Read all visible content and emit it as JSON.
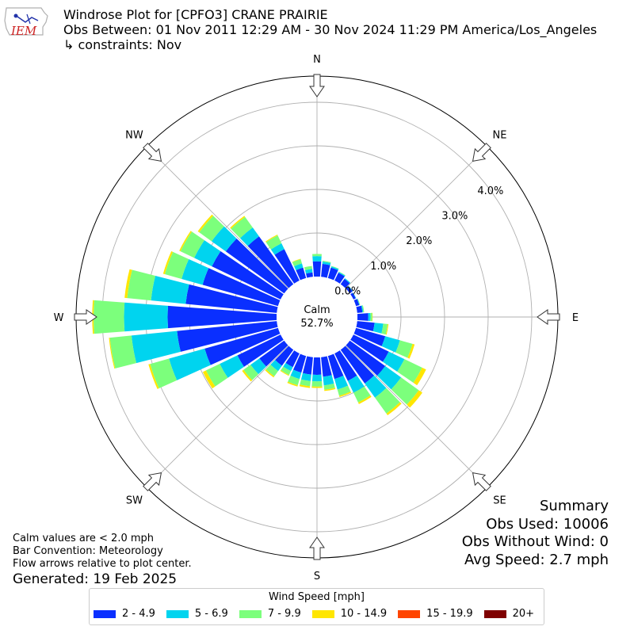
{
  "header": {
    "line1": "Windrose Plot for [CPFO3] CRANE PRAIRIE",
    "line2": "Obs Between: 01 Nov 2011 12:29 AM - 30 Nov 2024 11:29 PM America/Los_Angeles",
    "line3": "↳ constraints: Nov"
  },
  "logo": {
    "text": "IEM",
    "color": "#cc2222"
  },
  "summary": {
    "title": "Summary",
    "obs_used": "Obs Used: 10006",
    "obs_without_wind": "Obs Without Wind: 0",
    "avg_speed": "Avg Speed: 2.7 mph"
  },
  "notes": {
    "calm_note": "Calm values are < 2.0 mph",
    "bar_convention": "Bar Convention: Meteorology",
    "flow_arrows": "Flow arrows relative to plot center.",
    "generated": "Generated: 19 Feb 2025"
  },
  "chart_data": {
    "type": "windrose",
    "calm_label": "Calm",
    "calm_value": "52.7%",
    "calm_percent": 52.7,
    "radial_max": 4.6,
    "radial_ticks": [
      0,
      1,
      2,
      3,
      4
    ],
    "radial_tick_labels": [
      "0.0%",
      "1.0%",
      "2.0%",
      "3.0%",
      "4.0%"
    ],
    "direction_labels": [
      "N",
      "NE",
      "E",
      "SE",
      "S",
      "SW",
      "W",
      "NW"
    ],
    "legend_title": "Wind Speed [mph]",
    "bins": [
      {
        "label": "2 - 4.9",
        "color": "#0a2fff"
      },
      {
        "label": "5 - 6.9",
        "color": "#00d4ef"
      },
      {
        "label": "7 - 9.9",
        "color": "#7cff7c"
      },
      {
        "label": "10 - 14.9",
        "color": "#ffe600"
      },
      {
        "label": "15 - 19.9",
        "color": "#ff4500"
      },
      {
        "label": "20+",
        "color": "#7f0000"
      }
    ],
    "directions": [
      0,
      10,
      20,
      30,
      40,
      50,
      60,
      70,
      80,
      90,
      100,
      110,
      120,
      130,
      140,
      150,
      160,
      170,
      180,
      190,
      200,
      210,
      220,
      230,
      240,
      250,
      260,
      270,
      280,
      290,
      300,
      310,
      320,
      330,
      340,
      350
    ],
    "values": [
      [
        0.35,
        0.12,
        0.05,
        0.0,
        0,
        0
      ],
      [
        0.3,
        0.05,
        0.02,
        0.0,
        0,
        0
      ],
      [
        0.25,
        0.03,
        0.01,
        0.0,
        0,
        0
      ],
      [
        0.2,
        0.02,
        0.01,
        0.0,
        0,
        0
      ],
      [
        0.15,
        0.02,
        0.0,
        0.0,
        0,
        0
      ],
      [
        0.08,
        0.01,
        0.0,
        0.0,
        0,
        0
      ],
      [
        0.06,
        0.01,
        0.0,
        0.0,
        0,
        0
      ],
      [
        0.08,
        0.01,
        0.01,
        0.0,
        0,
        0
      ],
      [
        0.12,
        0.02,
        0.02,
        0.0,
        0,
        0
      ],
      [
        0.25,
        0.05,
        0.04,
        0.01,
        0,
        0
      ],
      [
        0.4,
        0.2,
        0.1,
        0.02,
        0,
        0
      ],
      [
        0.7,
        0.35,
        0.3,
        0.05,
        0,
        0
      ],
      [
        0.9,
        0.4,
        0.45,
        0.1,
        0,
        0
      ],
      [
        1.0,
        0.45,
        0.5,
        0.1,
        0,
        0
      ],
      [
        0.95,
        0.4,
        0.45,
        0.05,
        0,
        0
      ],
      [
        0.7,
        0.3,
        0.25,
        0.04,
        0,
        0
      ],
      [
        0.55,
        0.25,
        0.15,
        0.03,
        0,
        0
      ],
      [
        0.45,
        0.2,
        0.1,
        0.03,
        0,
        0
      ],
      [
        0.4,
        0.15,
        0.12,
        0.03,
        0,
        0
      ],
      [
        0.4,
        0.15,
        0.12,
        0.04,
        0,
        0
      ],
      [
        0.4,
        0.15,
        0.15,
        0.03,
        0,
        0
      ],
      [
        0.35,
        0.1,
        0.1,
        0.02,
        0,
        0
      ],
      [
        0.45,
        0.15,
        0.15,
        0.03,
        0,
        0
      ],
      [
        0.7,
        0.25,
        0.2,
        0.04,
        0,
        0
      ],
      [
        1.1,
        0.45,
        0.35,
        0.08,
        0,
        0
      ],
      [
        1.75,
        0.85,
        0.45,
        0.04,
        0,
        0
      ],
      [
        2.3,
        1.05,
        0.5,
        0.02,
        0,
        0
      ],
      [
        2.5,
        1.0,
        0.7,
        0.03,
        0,
        0
      ],
      [
        2.1,
        0.8,
        0.55,
        0.06,
        0,
        0
      ],
      [
        1.8,
        0.5,
        0.4,
        0.04,
        0,
        0
      ],
      [
        1.75,
        0.45,
        0.35,
        0.03,
        0,
        0
      ],
      [
        1.65,
        0.4,
        0.35,
        0.04,
        0,
        0
      ],
      [
        1.35,
        0.25,
        0.3,
        0.03,
        0,
        0
      ],
      [
        0.8,
        0.15,
        0.2,
        0.02,
        0,
        0
      ],
      [
        0.25,
        0.1,
        0.1,
        0.01,
        0,
        0
      ],
      [
        0.1,
        0.08,
        0.07,
        0.0,
        0,
        0
      ]
    ]
  }
}
